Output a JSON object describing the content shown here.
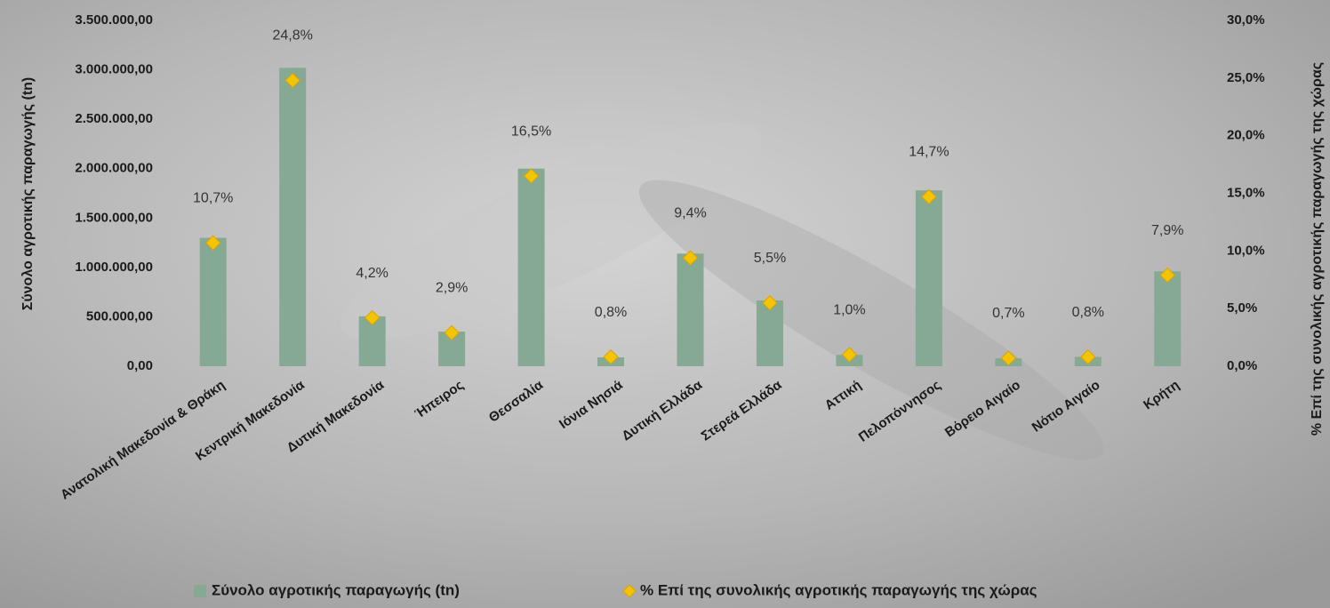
{
  "chart_data": {
    "type": "bar",
    "categories": [
      "Ανατολική Μακεδονία & Θράκη",
      "Κεντρική Μακεδονία",
      "Δυτική Μακεδονία",
      "Ήπειρος",
      "Θεσσαλία",
      "Ιόνια Νησιά",
      "Δυτική Ελλάδα",
      "Στερεά Ελλάδα",
      "Αττική",
      "Πελοπόννησος",
      "Βόρειο Αιγαίο",
      "Νότιο Αιγαίο",
      "Κρήτη"
    ],
    "series": [
      {
        "name": "Σύνολο αγροτικής παραγωγής (tn)",
        "type": "bar",
        "color": "#86a993",
        "values": [
          1300000,
          3020000,
          505000,
          350000,
          2000000,
          90000,
          1140000,
          665000,
          115000,
          1780000,
          80000,
          95000,
          960000
        ]
      },
      {
        "name": "% Επί της συνολικής αγροτικής παραγωγής της χώρας",
        "type": "scatter",
        "axis": "y2",
        "color": "#f5c400",
        "values": [
          10.7,
          24.8,
          4.2,
          2.9,
          16.5,
          0.8,
          9.4,
          5.5,
          1.0,
          14.7,
          0.7,
          0.8,
          7.9
        ],
        "value_labels": [
          "10,7%",
          "24,8%",
          "4,2%",
          "2,9%",
          "16,5%",
          "0,8%",
          "9,4%",
          "5,5%",
          "1,0%",
          "14,7%",
          "0,7%",
          "0,8%",
          "7,9%"
        ]
      }
    ],
    "y_label": "Σύνολο αγροτικής παραγωγής (tn)",
    "y2_label": "% Επί της συνολικής αγροτικής παραγωγής της χώρας",
    "ylim": [
      0,
      3500000
    ],
    "yticks": [
      {
        "value": 0,
        "label": "0,00"
      },
      {
        "value": 500000,
        "label": "500.000,00"
      },
      {
        "value": 1000000,
        "label": "1.000.000,00"
      },
      {
        "value": 1500000,
        "label": "1.500.000,00"
      },
      {
        "value": 2000000,
        "label": "2.000.000,00"
      },
      {
        "value": 2500000,
        "label": "2.500.000,00"
      },
      {
        "value": 3000000,
        "label": "3.000.000,00"
      },
      {
        "value": 3500000,
        "label": "3.500.000,00"
      }
    ],
    "y2lim": [
      0,
      30
    ],
    "y2ticks": [
      {
        "value": 0,
        "label": "0,0%"
      },
      {
        "value": 5,
        "label": "5,0%"
      },
      {
        "value": 10,
        "label": "10,0%"
      },
      {
        "value": 15,
        "label": "15,0%"
      },
      {
        "value": 20,
        "label": "20,0%"
      },
      {
        "value": 25,
        "label": "25,0%"
      },
      {
        "value": 30,
        "label": "30,0%"
      }
    ],
    "legend": "bottom"
  }
}
